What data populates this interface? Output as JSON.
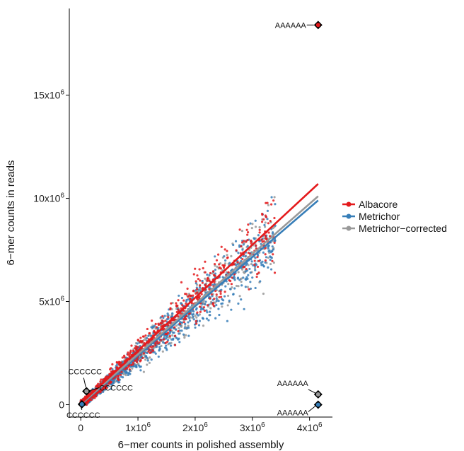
{
  "chart_data": {
    "type": "scatter",
    "xlabel": "6−mer counts in polished assembly",
    "ylabel": "6−mer counts in reads",
    "xlim": [
      -200000,
      4400000
    ],
    "ylim": [
      -600000,
      19200000
    ],
    "x_ticks": [
      {
        "value": 0,
        "base": "0",
        "exp": ""
      },
      {
        "value": 1000000,
        "base": "1x10",
        "exp": "6"
      },
      {
        "value": 2000000,
        "base": "2x10",
        "exp": "6"
      },
      {
        "value": 3000000,
        "base": "3x10",
        "exp": "6"
      },
      {
        "value": 4000000,
        "base": "4x10",
        "exp": "6"
      }
    ],
    "y_ticks": [
      {
        "value": 0,
        "base": "0",
        "exp": ""
      },
      {
        "value": 5000000,
        "base": "5x10",
        "exp": "6"
      },
      {
        "value": 10000000,
        "base": "10x10",
        "exp": "6"
      },
      {
        "value": 15000000,
        "base": "15x10",
        "exp": "6"
      }
    ],
    "grid": false,
    "legend_position": "right",
    "series": [
      {
        "name": "Albacore",
        "color": "#e41a1c",
        "fit": {
          "x0": 0,
          "y0": 50000,
          "x1": 4150000,
          "y1": 10700000
        }
      },
      {
        "name": "Metrichor",
        "color": "#377eb8",
        "fit": {
          "x0": 0,
          "y0": 0,
          "x1": 4150000,
          "y1": 9900000
        }
      },
      {
        "name": "Metrichor−corrected",
        "color": "#999999",
        "fit": {
          "x0": 0,
          "y0": 20000,
          "x1": 4150000,
          "y1": 10100000
        }
      }
    ],
    "highlighted_points": [
      {
        "label": "AAAAAA",
        "series": "Albacore",
        "x": 4150000,
        "y": 18400000
      },
      {
        "label": "AAAAAA",
        "series": "Metrichor−corrected",
        "x": 4150000,
        "y": 500000
      },
      {
        "label": "AAAAAA",
        "series": "Metrichor",
        "x": 4150000,
        "y": 0
      },
      {
        "label": "CCCCCC",
        "series": "Albacore",
        "x": 100000,
        "y": 650000
      },
      {
        "label": "CCCCCC",
        "series": "Metrichor−corrected",
        "x": 100000,
        "y": 650000
      },
      {
        "label": "CCCCCC",
        "series": "Metrichor",
        "x": 20000,
        "y": 20000
      }
    ]
  }
}
